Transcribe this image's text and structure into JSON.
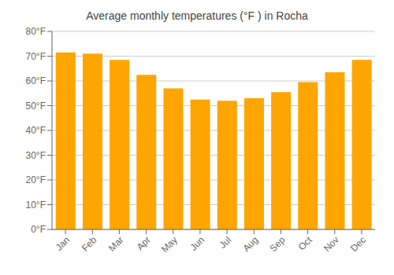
{
  "chart_data": {
    "type": "bar",
    "title": "Average monthly temperatures (°F ) in Rocha",
    "categories": [
      "Jan",
      "Feb",
      "Mar",
      "Apr",
      "May",
      "Jun",
      "Jul",
      "Aug",
      "Sep",
      "Oct",
      "Nov",
      "Dec"
    ],
    "values": [
      71.5,
      71.0,
      68.5,
      62.5,
      57.0,
      52.5,
      52.0,
      53.0,
      55.5,
      59.5,
      63.5,
      68.5
    ],
    "color": "#FFA500",
    "ylim": [
      0,
      80
    ],
    "yticks": [
      {
        "value": 0,
        "label": "0°F"
      },
      {
        "value": 10,
        "label": "10°F"
      },
      {
        "value": 20,
        "label": "20°F"
      },
      {
        "value": 30,
        "label": "30°F"
      },
      {
        "value": 40,
        "label": "40°F"
      },
      {
        "value": 50,
        "label": "50°F"
      },
      {
        "value": 60,
        "label": "60°F"
      },
      {
        "value": 70,
        "label": "70°F"
      },
      {
        "value": 80,
        "label": "80°F"
      }
    ],
    "grid": true
  }
}
